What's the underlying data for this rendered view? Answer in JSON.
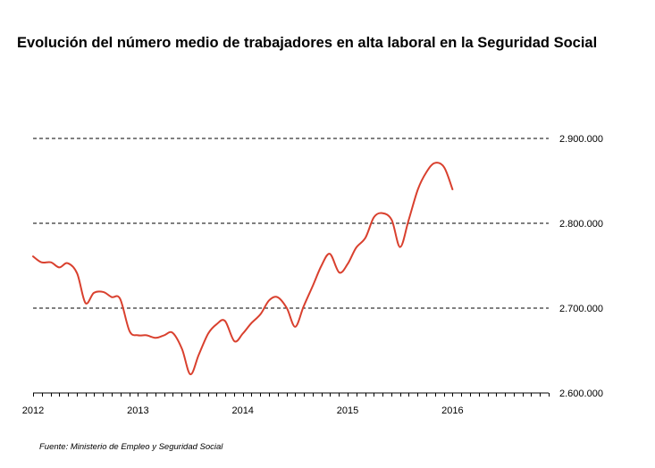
{
  "chart_data": {
    "type": "line",
    "title": "Evolución del número medio de trabajadores en alta laboral en la Seguridad Social",
    "source": "Fuente: Ministerio de Empleo y Seguridad Social",
    "xlabel": "",
    "ylabel": "",
    "xlim": [
      2012.0,
      2016.917
    ],
    "ylim": [
      2600000,
      2900000
    ],
    "x_tick_values": [
      2012,
      2013,
      2014,
      2015,
      2016
    ],
    "x_tick_labels": [
      "2012",
      "2013",
      "2014",
      "2015",
      "2016"
    ],
    "y_tick_values": [
      2600000,
      2700000,
      2800000,
      2900000
    ],
    "y_tick_labels": [
      "2.600.000",
      "2.700.000",
      "2.800.000",
      "2.900.000"
    ],
    "grid": true,
    "legend": "none",
    "line_color": "#d9402e",
    "series": [
      {
        "x": [
          2012.0,
          2012.08,
          2012.17,
          2012.25,
          2012.33,
          2012.42,
          2012.5,
          2012.58,
          2012.67,
          2012.75,
          2012.83,
          2012.92,
          2013.0,
          2013.08,
          2013.17,
          2013.25,
          2013.33,
          2013.42,
          2013.5,
          2013.58,
          2013.67,
          2013.75,
          2013.83,
          2013.92,
          2014.0,
          2014.08,
          2014.17,
          2014.25,
          2014.33,
          2014.42,
          2014.5,
          2014.58,
          2014.67,
          2014.75,
          2014.83,
          2014.92,
          2015.0,
          2015.08,
          2015.17,
          2015.25,
          2015.33,
          2015.42,
          2015.5,
          2015.58,
          2015.67,
          2015.75,
          2015.83,
          2015.92,
          2016.0
        ],
        "y": [
          2761000,
          2754000,
          2754000,
          2748000,
          2753000,
          2741000,
          2706000,
          2718000,
          2719000,
          2713000,
          2711000,
          2673000,
          2668000,
          2668000,
          2665000,
          2668000,
          2671000,
          2652000,
          2622000,
          2645000,
          2670000,
          2681000,
          2685000,
          2661000,
          2670000,
          2682000,
          2693000,
          2709000,
          2713000,
          2700000,
          2678000,
          2702000,
          2727000,
          2750000,
          2764000,
          2742000,
          2752000,
          2771000,
          2783000,
          2807000,
          2812000,
          2804000,
          2772000,
          2803000,
          2840000,
          2860000,
          2871000,
          2866000,
          2840000
        ]
      }
    ]
  }
}
